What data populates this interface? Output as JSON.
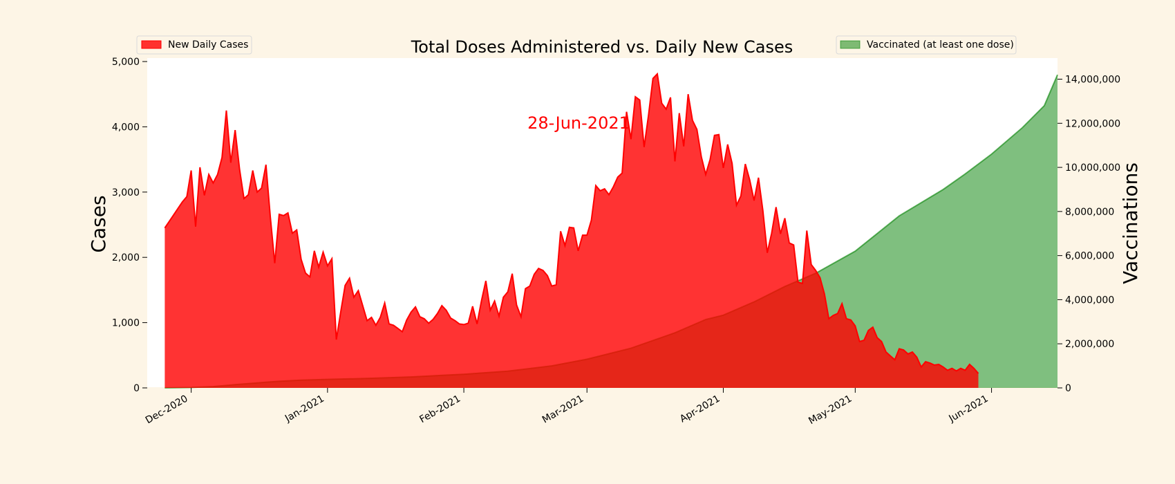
{
  "chart_data": {
    "type": "area",
    "title": "Total Doses Administered vs. Daily New Cases",
    "annotation": "28-Jun-2021",
    "annotation_color": "#ff0000",
    "background": "#fdf5e6",
    "plot_background": "#ffffff",
    "grid": false,
    "x_tick_labels": [
      "Dec-2020",
      "Jan-2021",
      "Feb-2021",
      "Mar-2021",
      "Apr-2021",
      "May-2021",
      "Jun-2021"
    ],
    "x_ticks": [
      "2020-12-01",
      "2021-01-01",
      "2021-02-01",
      "2021-03-01",
      "2021-04-01",
      "2021-05-01",
      "2021-06-01"
    ],
    "x_range": [
      "2020-11-21",
      "2021-06-16"
    ],
    "left_axis": {
      "label": "Cases",
      "ylim": [
        0,
        5000
      ],
      "ticks": [
        0,
        1000,
        2000,
        3000,
        4000,
        5000
      ],
      "tick_labels": [
        "0",
        "1,000",
        "2,000",
        "3,000",
        "4,000",
        "5,000"
      ]
    },
    "right_axis": {
      "label": "Vaccinations",
      "ylim": [
        0,
        14800000
      ],
      "ticks": [
        0,
        2000000,
        4000000,
        6000000,
        8000000,
        10000000,
        12000000,
        14000000
      ],
      "tick_labels": [
        "0",
        "2,000,000",
        "4,000,000",
        "6,000,000",
        "8,000,000",
        "10,000,000",
        "12,000,000",
        "14,000,000"
      ]
    },
    "series": [
      {
        "name": "New Daily Cases",
        "axis": "left",
        "color": "#ff0000",
        "legend_position": "top-left",
        "points": [
          [
            "2020-11-25",
            2450
          ],
          [
            "2020-11-26",
            2550
          ],
          [
            "2020-11-27",
            2650
          ],
          [
            "2020-11-28",
            2750
          ],
          [
            "2020-11-29",
            2850
          ],
          [
            "2020-11-30",
            2930
          ],
          [
            "2020-12-01",
            3330
          ],
          [
            "2020-12-02",
            2470
          ],
          [
            "2020-12-03",
            3380
          ],
          [
            "2020-12-04",
            2950
          ],
          [
            "2020-12-05",
            3270
          ],
          [
            "2020-12-06",
            3140
          ],
          [
            "2020-12-07",
            3270
          ],
          [
            "2020-12-08",
            3530
          ],
          [
            "2020-12-09",
            4250
          ],
          [
            "2020-12-10",
            3450
          ],
          [
            "2020-12-11",
            3950
          ],
          [
            "2020-12-12",
            3350
          ],
          [
            "2020-12-13",
            2900
          ],
          [
            "2020-12-14",
            2960
          ],
          [
            "2020-12-15",
            3330
          ],
          [
            "2020-12-16",
            3000
          ],
          [
            "2020-12-17",
            3060
          ],
          [
            "2020-12-18",
            3420
          ],
          [
            "2020-12-19",
            2620
          ],
          [
            "2020-12-20",
            1910
          ],
          [
            "2020-12-21",
            2660
          ],
          [
            "2020-12-22",
            2640
          ],
          [
            "2020-12-23",
            2680
          ],
          [
            "2020-12-24",
            2370
          ],
          [
            "2020-12-25",
            2420
          ],
          [
            "2020-12-26",
            1970
          ],
          [
            "2020-12-27",
            1760
          ],
          [
            "2020-12-28",
            1700
          ],
          [
            "2020-12-29",
            2100
          ],
          [
            "2020-12-30",
            1850
          ],
          [
            "2020-12-31",
            2080
          ],
          [
            "2021-01-01",
            1870
          ],
          [
            "2021-01-02",
            1980
          ],
          [
            "2021-01-03",
            740
          ],
          [
            "2021-01-04",
            1160
          ],
          [
            "2021-01-05",
            1570
          ],
          [
            "2021-01-06",
            1680
          ],
          [
            "2021-01-07",
            1390
          ],
          [
            "2021-01-08",
            1490
          ],
          [
            "2021-01-09",
            1260
          ],
          [
            "2021-01-10",
            1030
          ],
          [
            "2021-01-11",
            1080
          ],
          [
            "2021-01-12",
            960
          ],
          [
            "2021-01-13",
            1080
          ],
          [
            "2021-01-14",
            1300
          ],
          [
            "2021-01-15",
            980
          ],
          [
            "2021-01-16",
            960
          ],
          [
            "2021-01-17",
            910
          ],
          [
            "2021-01-18",
            860
          ],
          [
            "2021-01-19",
            1040
          ],
          [
            "2021-01-20",
            1160
          ],
          [
            "2021-01-21",
            1240
          ],
          [
            "2021-01-22",
            1090
          ],
          [
            "2021-01-23",
            1060
          ],
          [
            "2021-01-24",
            990
          ],
          [
            "2021-01-25",
            1050
          ],
          [
            "2021-01-26",
            1140
          ],
          [
            "2021-01-27",
            1260
          ],
          [
            "2021-01-28",
            1190
          ],
          [
            "2021-01-29",
            1070
          ],
          [
            "2021-01-30",
            1030
          ],
          [
            "2021-01-31",
            980
          ],
          [
            "2021-02-01",
            970
          ],
          [
            "2021-02-02",
            990
          ],
          [
            "2021-02-03",
            1250
          ],
          [
            "2021-02-04",
            980
          ],
          [
            "2021-02-05",
            1330
          ],
          [
            "2021-02-06",
            1640
          ],
          [
            "2021-02-07",
            1190
          ],
          [
            "2021-02-08",
            1330
          ],
          [
            "2021-02-09",
            1100
          ],
          [
            "2021-02-10",
            1390
          ],
          [
            "2021-02-11",
            1470
          ],
          [
            "2021-02-12",
            1750
          ],
          [
            "2021-02-13",
            1270
          ],
          [
            "2021-02-14",
            1090
          ],
          [
            "2021-02-15",
            1520
          ],
          [
            "2021-02-16",
            1560
          ],
          [
            "2021-02-17",
            1740
          ],
          [
            "2021-02-18",
            1830
          ],
          [
            "2021-02-19",
            1800
          ],
          [
            "2021-02-20",
            1720
          ],
          [
            "2021-02-21",
            1560
          ],
          [
            "2021-02-22",
            1580
          ],
          [
            "2021-02-23",
            2400
          ],
          [
            "2021-02-24",
            2180
          ],
          [
            "2021-02-25",
            2460
          ],
          [
            "2021-02-26",
            2450
          ],
          [
            "2021-02-27",
            2100
          ],
          [
            "2021-02-28",
            2340
          ],
          [
            "2021-03-01",
            2340
          ],
          [
            "2021-03-02",
            2570
          ],
          [
            "2021-03-03",
            3100
          ],
          [
            "2021-03-04",
            3020
          ],
          [
            "2021-03-05",
            3050
          ],
          [
            "2021-03-06",
            2960
          ],
          [
            "2021-03-07",
            3080
          ],
          [
            "2021-03-08",
            3230
          ],
          [
            "2021-03-09",
            3290
          ],
          [
            "2021-03-10",
            4230
          ],
          [
            "2021-03-11",
            3810
          ],
          [
            "2021-03-12",
            4460
          ],
          [
            "2021-03-13",
            4410
          ],
          [
            "2021-03-14",
            3690
          ],
          [
            "2021-03-15",
            4180
          ],
          [
            "2021-03-16",
            4740
          ],
          [
            "2021-03-17",
            4810
          ],
          [
            "2021-03-18",
            4360
          ],
          [
            "2021-03-19",
            4270
          ],
          [
            "2021-03-20",
            4450
          ],
          [
            "2021-03-21",
            3470
          ],
          [
            "2021-03-22",
            4210
          ],
          [
            "2021-03-23",
            3700
          ],
          [
            "2021-03-24",
            4500
          ],
          [
            "2021-03-25",
            4100
          ],
          [
            "2021-03-26",
            3960
          ],
          [
            "2021-03-27",
            3540
          ],
          [
            "2021-03-28",
            3270
          ],
          [
            "2021-03-29",
            3500
          ],
          [
            "2021-03-30",
            3870
          ],
          [
            "2021-03-31",
            3880
          ],
          [
            "2021-04-01",
            3370
          ],
          [
            "2021-04-02",
            3730
          ],
          [
            "2021-04-03",
            3440
          ],
          [
            "2021-04-04",
            2800
          ],
          [
            "2021-04-05",
            2940
          ],
          [
            "2021-04-06",
            3430
          ],
          [
            "2021-04-07",
            3190
          ],
          [
            "2021-04-08",
            2870
          ],
          [
            "2021-04-09",
            3220
          ],
          [
            "2021-04-10",
            2720
          ],
          [
            "2021-04-11",
            2070
          ],
          [
            "2021-04-12",
            2370
          ],
          [
            "2021-04-13",
            2770
          ],
          [
            "2021-04-14",
            2360
          ],
          [
            "2021-04-15",
            2600
          ],
          [
            "2021-04-16",
            2220
          ],
          [
            "2021-04-17",
            2190
          ],
          [
            "2021-04-18",
            1620
          ],
          [
            "2021-04-19",
            1600
          ],
          [
            "2021-04-20",
            2410
          ],
          [
            "2021-04-21",
            1890
          ],
          [
            "2021-04-22",
            1800
          ],
          [
            "2021-04-23",
            1690
          ],
          [
            "2021-04-24",
            1440
          ],
          [
            "2021-04-25",
            1060
          ],
          [
            "2021-04-26",
            1110
          ],
          [
            "2021-04-27",
            1140
          ],
          [
            "2021-04-28",
            1290
          ],
          [
            "2021-04-29",
            1060
          ],
          [
            "2021-04-30",
            1040
          ],
          [
            "2021-05-01",
            950
          ],
          [
            "2021-05-02",
            710
          ],
          [
            "2021-05-03",
            730
          ],
          [
            "2021-05-04",
            880
          ],
          [
            "2021-05-05",
            930
          ],
          [
            "2021-05-06",
            770
          ],
          [
            "2021-05-07",
            710
          ],
          [
            "2021-05-08",
            550
          ],
          [
            "2021-05-09",
            490
          ],
          [
            "2021-05-10",
            430
          ],
          [
            "2021-05-11",
            600
          ],
          [
            "2021-05-12",
            580
          ],
          [
            "2021-05-13",
            520
          ],
          [
            "2021-05-14",
            550
          ],
          [
            "2021-05-15",
            470
          ],
          [
            "2021-05-16",
            320
          ],
          [
            "2021-05-17",
            400
          ],
          [
            "2021-05-18",
            380
          ],
          [
            "2021-05-19",
            350
          ],
          [
            "2021-05-20",
            360
          ],
          [
            "2021-05-21",
            320
          ],
          [
            "2021-05-22",
            270
          ],
          [
            "2021-05-23",
            300
          ],
          [
            "2021-05-24",
            260
          ],
          [
            "2021-05-25",
            300
          ],
          [
            "2021-05-26",
            270
          ],
          [
            "2021-05-27",
            360
          ],
          [
            "2021-05-28",
            300
          ],
          [
            "2021-05-29",
            220
          ]
        ]
      },
      {
        "name": "Vaccinated (at least one dose)",
        "axis": "right",
        "color": "#008000",
        "legend_position": "top-right",
        "points": [
          [
            "2020-11-25",
            0
          ],
          [
            "2020-12-01",
            20000
          ],
          [
            "2020-12-06",
            60000
          ],
          [
            "2020-12-11",
            150000
          ],
          [
            "2020-12-16",
            230000
          ],
          [
            "2020-12-21",
            300000
          ],
          [
            "2020-12-26",
            350000
          ],
          [
            "2021-01-01",
            390000
          ],
          [
            "2021-01-10",
            430000
          ],
          [
            "2021-01-20",
            500000
          ],
          [
            "2021-02-01",
            620000
          ],
          [
            "2021-02-11",
            760000
          ],
          [
            "2021-02-21",
            1000000
          ],
          [
            "2021-03-01",
            1300000
          ],
          [
            "2021-03-11",
            1800000
          ],
          [
            "2021-03-21",
            2500000
          ],
          [
            "2021-03-28",
            3100000
          ],
          [
            "2021-04-01",
            3300000
          ],
          [
            "2021-04-08",
            3900000
          ],
          [
            "2021-04-15",
            4600000
          ],
          [
            "2021-04-22",
            5200000
          ],
          [
            "2021-05-01",
            6200000
          ],
          [
            "2021-05-06",
            7000000
          ],
          [
            "2021-05-11",
            7800000
          ],
          [
            "2021-05-16",
            8400000
          ],
          [
            "2021-05-21",
            9000000
          ],
          [
            "2021-05-26",
            9700000
          ],
          [
            "2021-06-01",
            10600000
          ],
          [
            "2021-06-08",
            11800000
          ],
          [
            "2021-06-13",
            12800000
          ],
          [
            "2021-06-16",
            14200000
          ]
        ]
      }
    ]
  }
}
